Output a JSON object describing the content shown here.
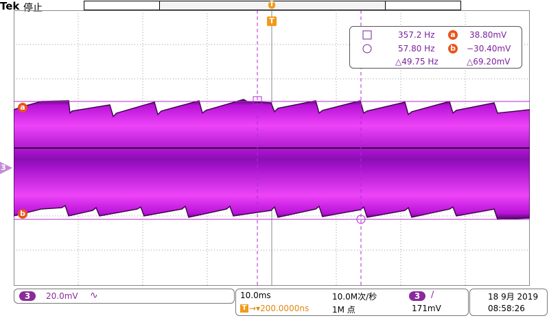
{
  "header": {
    "brand": "Tek",
    "acq_state": "停止"
  },
  "trigger": {
    "marker": "T",
    "position_marker": "T"
  },
  "cursors": {
    "box_icon": "square-icon",
    "circle_icon": "circle-icon",
    "freq_a": "357.2 Hz",
    "freq_b": "57.80 Hz",
    "delta_freq": "△49.75 Hz",
    "badge_a": "a",
    "badge_b": "b",
    "volt_a": "38.80mV",
    "volt_b": "−30.40mV",
    "delta_volt": "△69.20mV"
  },
  "channel": {
    "number": "3",
    "scale": "20.0mV",
    "coupling_icon": "ac-coupling-icon",
    "coupling_symbol": "∿",
    "color": "#c020d8"
  },
  "horizontal": {
    "time_div": "10.0ms",
    "sample_rate": "10.0M次/秒",
    "trigger_delay": "→▾200.0000ns",
    "record_length": "1M 点"
  },
  "trigger_status": {
    "source": "3",
    "slope_symbol": "/",
    "level": "171mV"
  },
  "clock": {
    "date": "18 9月 2019",
    "time": "08:58:26"
  }
}
